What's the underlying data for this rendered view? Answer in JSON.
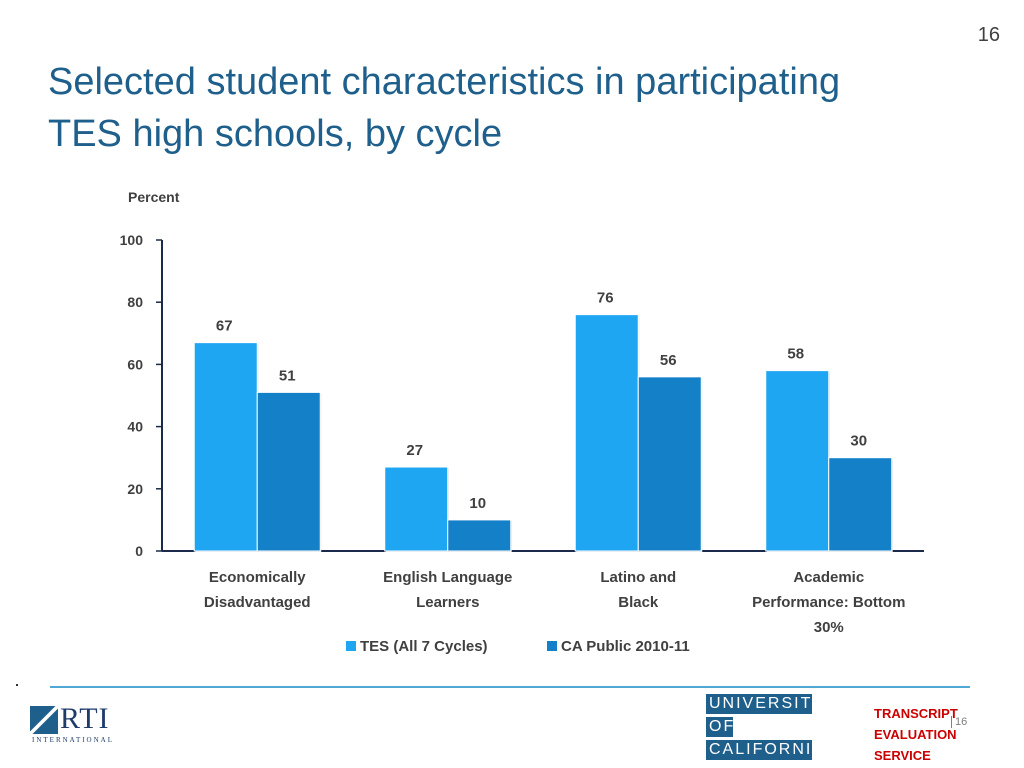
{
  "slide_number": "16",
  "title_lines": [
    "Selected student characteristics in participating",
    "TES high schools, by cycle"
  ],
  "chart_data": {
    "type": "bar",
    "ylabel": "Percent",
    "ylim": [
      0,
      100
    ],
    "yticks": [
      "0",
      "20",
      "40",
      "60",
      "80",
      "100"
    ],
    "categories": [
      [
        "Economically",
        "Disadvantaged"
      ],
      [
        "English Language",
        "Learners"
      ],
      [
        "Latino and",
        "Black"
      ],
      [
        "Academic",
        "Performance: Bottom",
        "30%"
      ]
    ],
    "series": [
      {
        "name": "TES (All 7 Cycles)",
        "values": [
          67,
          27,
          76,
          58
        ],
        "color": "#1ea6f2"
      },
      {
        "name": "CA Public 2010-11",
        "values": [
          51,
          10,
          56,
          30
        ],
        "color": "#1380c8"
      }
    ],
    "legend_position": "bottom-center",
    "grid": false
  },
  "footer": {
    "rti": {
      "name": "RTI",
      "subtitle": "INTERNATIONAL"
    },
    "uc": {
      "line1": "UNIVERSITY",
      "line2": "OF",
      "line3": "CALIFORNIA"
    },
    "tes": {
      "line1": "TRANSCRIPT",
      "line2": "EVALUATION",
      "line3": "SERVICE"
    },
    "page_number": "16"
  }
}
